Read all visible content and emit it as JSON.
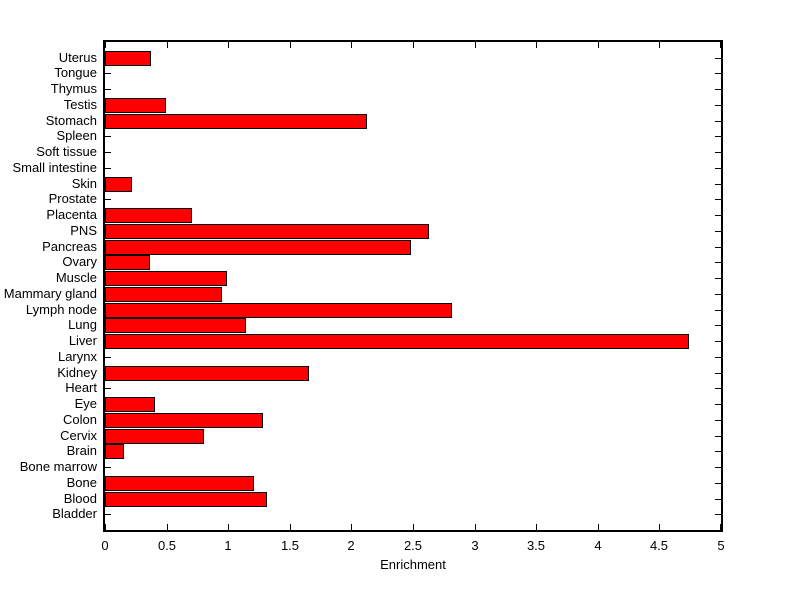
{
  "figure": {
    "background_color": "#ffffff",
    "axis_color": "#000000",
    "bar_color": "#ff0000",
    "bar_edge_color": "#000000"
  },
  "chart_data": {
    "type": "bar",
    "orientation": "horizontal",
    "title": "",
    "xlabel": "Enrichment",
    "ylabel": "",
    "xlim": [
      0,
      5
    ],
    "grid": false,
    "legend": null,
    "x_ticks": [
      0,
      0.5,
      1,
      1.5,
      2,
      2.5,
      3,
      3.5,
      4,
      4.5,
      5
    ],
    "x_tick_labels": [
      "0",
      "0.5",
      "1",
      "1.5",
      "2",
      "2.5",
      "3",
      "3.5",
      "4",
      "4.5",
      "5"
    ],
    "categories_top_to_bottom": [
      "Uterus",
      "Tongue",
      "Thymus",
      "Testis",
      "Stomach",
      "Spleen",
      "Soft tissue",
      "Small intestine",
      "Skin",
      "Prostate",
      "Placenta",
      "PNS",
      "Pancreas",
      "Ovary",
      "Muscle",
      "Mammary gland",
      "Lymph node",
      "Lung",
      "Liver",
      "Larynx",
      "Kidney",
      "Heart",
      "Eye",
      "Colon",
      "Cervix",
      "Brain",
      "Bone marrow",
      "Bone",
      "Blood",
      "Bladder"
    ],
    "values": [
      0.36,
      0,
      0,
      0.48,
      2.11,
      0,
      0,
      0,
      0.2,
      0,
      0.69,
      2.61,
      2.47,
      0.35,
      0.97,
      0.93,
      2.8,
      1.13,
      4.72,
      0,
      1.64,
      0,
      0.39,
      1.27,
      0.79,
      0.14,
      0,
      1.19,
      1.3,
      0
    ]
  }
}
